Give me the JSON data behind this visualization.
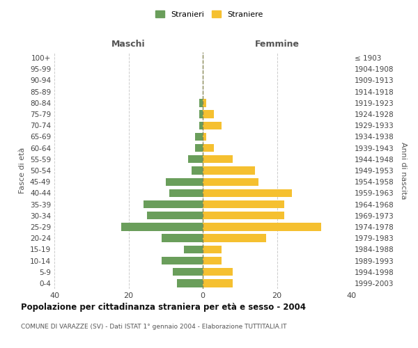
{
  "age_groups": [
    "0-4",
    "5-9",
    "10-14",
    "15-19",
    "20-24",
    "25-29",
    "30-34",
    "35-39",
    "40-44",
    "45-49",
    "50-54",
    "55-59",
    "60-64",
    "65-69",
    "70-74",
    "75-79",
    "80-84",
    "85-89",
    "90-94",
    "95-99",
    "100+"
  ],
  "birth_years": [
    "1999-2003",
    "1994-1998",
    "1989-1993",
    "1984-1988",
    "1979-1983",
    "1974-1978",
    "1969-1973",
    "1964-1968",
    "1959-1963",
    "1954-1958",
    "1949-1953",
    "1944-1948",
    "1939-1943",
    "1934-1938",
    "1929-1933",
    "1924-1928",
    "1919-1923",
    "1914-1918",
    "1909-1913",
    "1904-1908",
    "≤ 1903"
  ],
  "maschi": [
    7,
    8,
    11,
    5,
    11,
    22,
    15,
    16,
    9,
    10,
    3,
    4,
    2,
    2,
    1,
    1,
    1,
    0,
    0,
    0,
    0
  ],
  "femmine": [
    8,
    8,
    5,
    5,
    17,
    32,
    22,
    22,
    24,
    15,
    14,
    8,
    3,
    1,
    5,
    3,
    1,
    0,
    0,
    0,
    0
  ],
  "maschi_color": "#6a9e5b",
  "femmine_color": "#f5c030",
  "title": "Popolazione per cittadinanza straniera per età e sesso - 2004",
  "subtitle": "COMUNE DI VARAZZE (SV) - Dati ISTAT 1° gennaio 2004 - Elaborazione TUTTITALIA.IT",
  "xlabel_left": "Maschi",
  "xlabel_right": "Femmine",
  "ylabel_left": "Fasce di età",
  "ylabel_right": "Anni di nascita",
  "legend_stranieri": "Stranieri",
  "legend_straniere": "Straniere",
  "xlim": 40,
  "background_color": "#ffffff",
  "grid_color": "#cccccc"
}
